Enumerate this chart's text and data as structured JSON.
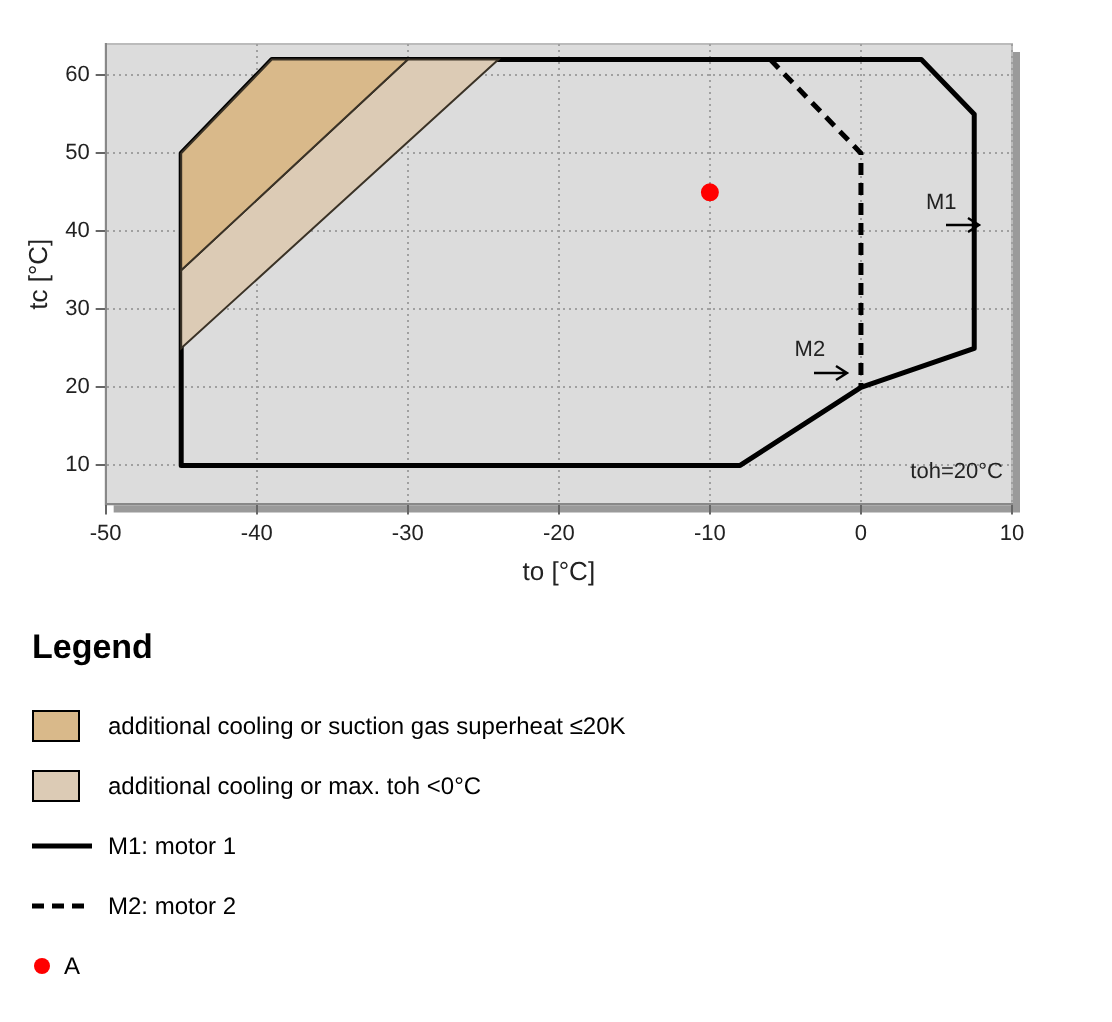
{
  "chart_data": {
    "type": "line",
    "xlabel": "to [°C]",
    "ylabel": "tc [°C]",
    "legend_title": "Legend",
    "legend": "bottom",
    "grid": true,
    "xlim": [
      -50,
      10
    ],
    "xticks": [
      -50,
      -40,
      -30,
      -20,
      -10,
      0,
      10
    ],
    "ylim": [
      5,
      64
    ],
    "yticks": [
      10,
      20,
      30,
      40,
      50,
      60
    ],
    "series": [
      {
        "name": "additional cooling or suction gas superheat ≤20K",
        "type": "area",
        "color": "#d9b98a",
        "x": [
          -45,
          -39,
          -30,
          -45,
          -45
        ],
        "values": [
          50,
          62,
          62,
          35,
          50
        ]
      },
      {
        "name": "additional cooling or max. toh <0°C",
        "type": "area",
        "color": "#dccbb5",
        "x": [
          -45,
          -30,
          -24,
          -45,
          -45
        ],
        "values": [
          35,
          62,
          62,
          25,
          35
        ]
      },
      {
        "name": "M1: motor 1",
        "color": "#000000",
        "line_style": "solid",
        "x": [
          -45,
          -45,
          -39,
          4,
          7.5,
          7.5,
          0,
          -8,
          -45,
          -45
        ],
        "values": [
          10,
          50,
          62,
          62,
          55,
          25,
          20,
          10,
          10,
          50
        ]
      },
      {
        "name": "M2: motor 2",
        "color": "#000000",
        "line_style": "dashed",
        "x": [
          -6,
          0,
          0
        ],
        "values": [
          62,
          50,
          20
        ]
      },
      {
        "name": "A",
        "type": "scatter",
        "color": "#ff0000",
        "marker": "circle",
        "x": [
          -10
        ],
        "values": [
          45
        ]
      }
    ],
    "annotations": [
      "M1",
      "M2",
      "toh=20°C"
    ]
  }
}
